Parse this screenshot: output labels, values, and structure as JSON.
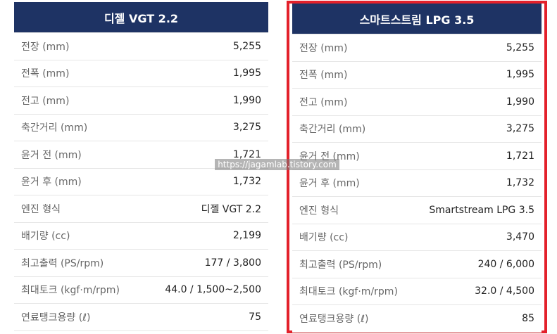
{
  "left_table": {
    "title": "디젤 VGT 2.2",
    "rows": [
      {
        "label": "전장 (mm)",
        "value": "5,255"
      },
      {
        "label": "전폭 (mm)",
        "value": "1,995"
      },
      {
        "label": "전고 (mm)",
        "value": "1,990"
      },
      {
        "label": "축간거리 (mm)",
        "value": "3,275"
      },
      {
        "label": "윤거 전 (mm)",
        "value": "1,721"
      },
      {
        "label": "윤거 후 (mm)",
        "value": "1,732"
      },
      {
        "label": "엔진 형식",
        "value": "디젤 VGT 2.2"
      },
      {
        "label": "배기량 (cc)",
        "value": "2,199"
      },
      {
        "label": "최고출력 (PS/rpm)",
        "value": "177 / 3,800"
      },
      {
        "label": "최대토크 (kgf·m/rpm)",
        "value": "44.0 / 1,500~2,500"
      },
      {
        "label": "연료탱크용량 (ℓ)",
        "value": "75"
      }
    ]
  },
  "right_table": {
    "title": "스마트스트림 LPG 3.5",
    "highlight_color": "#e3212b",
    "rows": [
      {
        "label": "전장 (mm)",
        "value": "5,255"
      },
      {
        "label": "전폭 (mm)",
        "value": "1,995"
      },
      {
        "label": "전고 (mm)",
        "value": "1,990"
      },
      {
        "label": "축간거리 (mm)",
        "value": "3,275"
      },
      {
        "label": "윤거 전 (mm)",
        "value": "1,721"
      },
      {
        "label": "윤거 후 (mm)",
        "value": "1,732"
      },
      {
        "label": "엔진 형식",
        "value": "Smartstream LPG 3.5"
      },
      {
        "label": "배기량 (cc)",
        "value": "3,470"
      },
      {
        "label": "최고출력 (PS/rpm)",
        "value": "240 / 6,000"
      },
      {
        "label": "최대토크 (kgf·m/rpm)",
        "value": "32.0 / 4,500"
      },
      {
        "label": "연료탱크용량 (ℓ)",
        "value": "85"
      }
    ]
  },
  "header_color": "#1e3364",
  "watermark": "https://jagamlab.tistory.com"
}
